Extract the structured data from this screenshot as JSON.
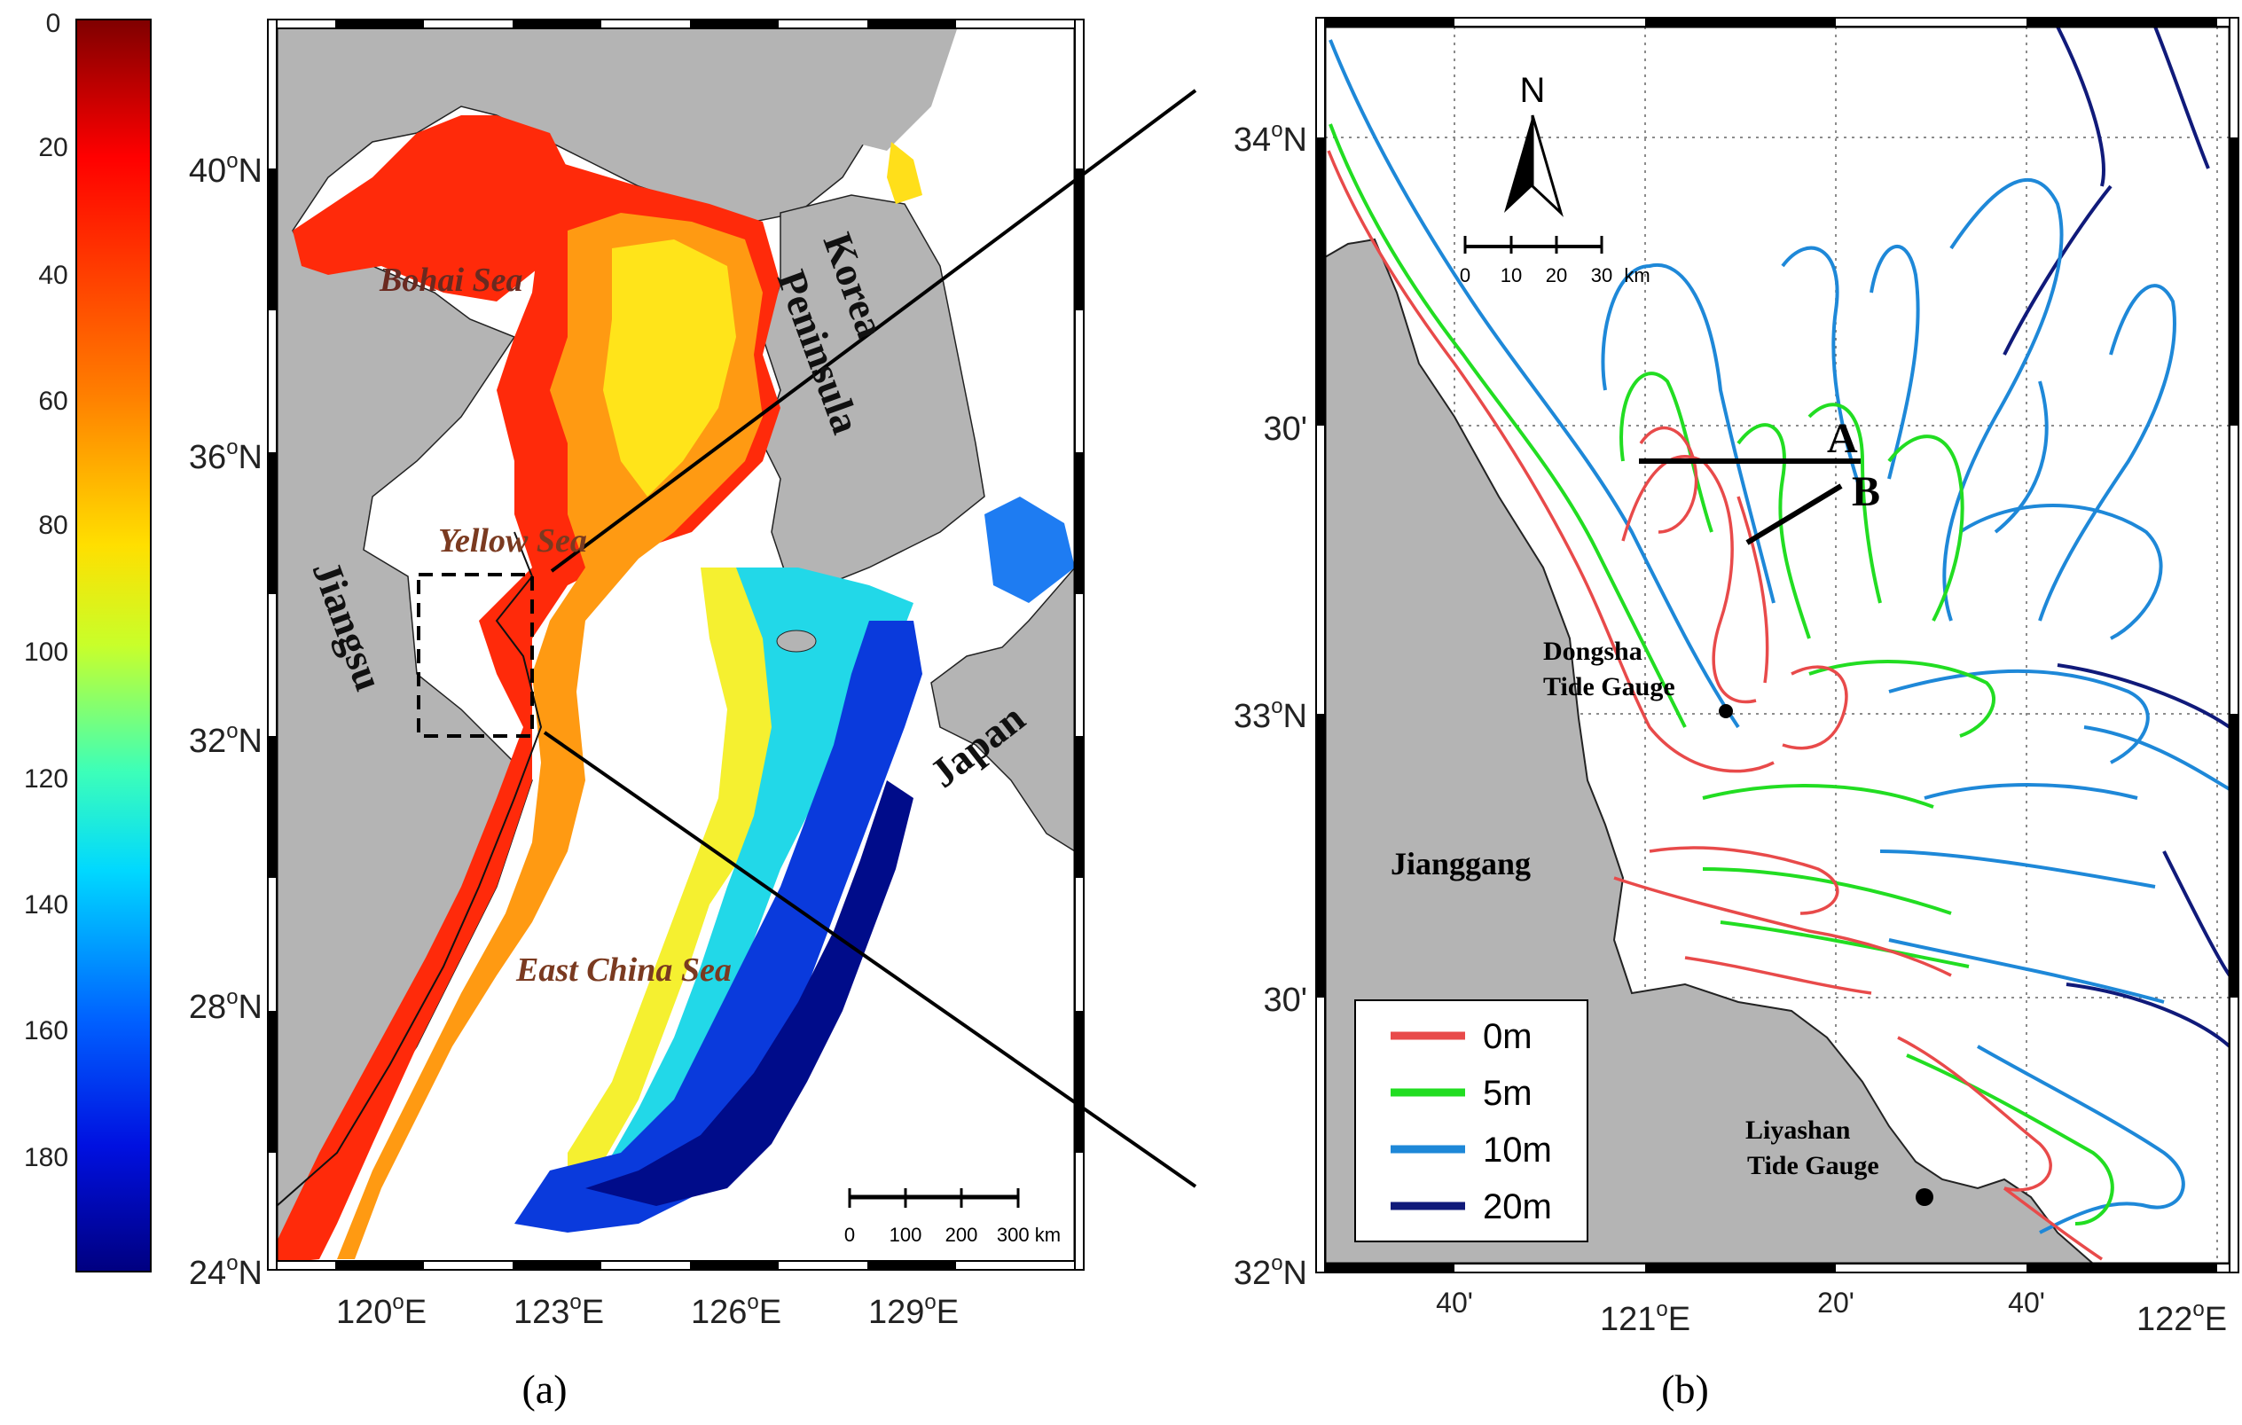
{
  "colorbar": {
    "ticks": [
      "0",
      "20",
      "40",
      "60",
      "80",
      "100",
      "120",
      "140",
      "160",
      "180"
    ]
  },
  "panel_a": {
    "lat_labels": [
      "40",
      "36",
      "32",
      "28",
      "24"
    ],
    "lon_labels": [
      "120",
      "123",
      "126",
      "129"
    ],
    "lat_suffix": "N",
    "lon_suffix": "E",
    "places": {
      "bohai": "Bohai Sea",
      "yellow": "Yellow Sea",
      "east_china": "East China Sea",
      "korea": "Korea",
      "peninsula": "Peninsula",
      "jiangsu": "Jiangsu",
      "japan": "Japan"
    },
    "scale": {
      "labels": [
        "0",
        "100",
        "200",
        "300 km"
      ]
    },
    "caption": "(a)"
  },
  "panel_b": {
    "lat_labels": {
      "top": "34",
      "mid": "33",
      "bottom": "32",
      "min30a": "30'",
      "min30b": "30'"
    },
    "lon_labels": {
      "m40a": "40'",
      "deg121": "121",
      "m20": "20'",
      "m40b": "40'",
      "deg122": "122"
    },
    "north": "N",
    "scale": {
      "labels": [
        "0",
        "10",
        "20",
        "30",
        "km"
      ]
    },
    "section_labels": {
      "a": "A",
      "b": "B"
    },
    "places": {
      "dongsha1": "Dongsha",
      "dongsha2": "Tide Gauge",
      "liyashan1": "Liyashan",
      "liyashan2": "Tide Gauge",
      "jianggang": "Jianggang"
    },
    "legend": [
      {
        "label": "0m",
        "color": "#e84a4a"
      },
      {
        "label": "5m",
        "color": "#22dd22"
      },
      {
        "label": "10m",
        "color": "#1e88d8"
      },
      {
        "label": "20m",
        "color": "#101a7a"
      }
    ],
    "caption": "(b)"
  },
  "colors": {
    "land": "#b4b4b4",
    "frame": "#000000"
  }
}
